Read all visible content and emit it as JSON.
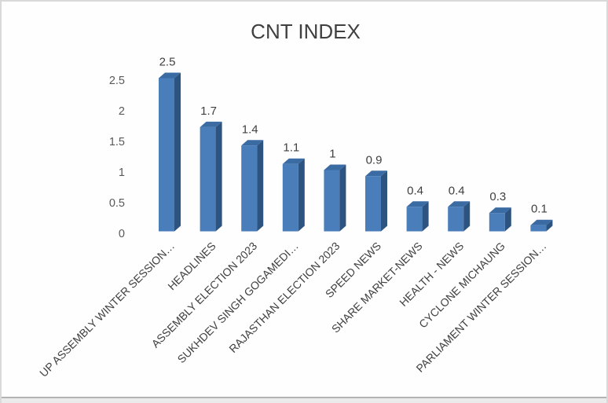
{
  "window": {
    "background": "#fefefe",
    "border_color": "#d9d9d9",
    "bottom_edge_color": "#b3b3b3",
    "bottom_strip_color": "#ebebeb"
  },
  "chart_data": {
    "type": "bar",
    "style": "3d-box",
    "title": "CNT INDEX",
    "categories": [
      "UP ASSEMBLY WINTER SESSION…",
      "HEADLINES",
      "ASSEMBLY ELECTION 2023",
      "SUKHDEV SINGH GOGAMEDI…",
      "RAJASTHAN ELECTION 2023",
      "SPEED NEWS",
      "SHARE MARKET-NEWS",
      "HEALTH - NEWS",
      "CYCLONE MICHAUNG",
      "PARLIAMENT WINTER SESSION…"
    ],
    "values": [
      2.5,
      1.7,
      1.4,
      1.1,
      1,
      0.9,
      0.4,
      0.4,
      0.3,
      0.1
    ],
    "value_labels": [
      "2.5",
      "1.7",
      "1.4",
      "1.1",
      "1",
      "0.9",
      "0.4",
      "0.4",
      "0.3",
      "0.1"
    ],
    "xlabel": "",
    "ylabel": "",
    "ylim": [
      0,
      2.5
    ],
    "yticks": [
      0,
      0.5,
      1,
      1.5,
      2,
      2.5
    ],
    "ytick_labels": [
      "0",
      "0.5",
      "1",
      "1.5",
      "2",
      "2.5"
    ],
    "gridlines": false,
    "legend": "none",
    "category_label_rotation_deg": -45,
    "colors": {
      "bar_front": "#4a7ebb",
      "bar_side": "#2d5380",
      "bar_top": "#3b6ba3",
      "title_text": "#404040",
      "axis_text": "#595959",
      "data_label_text": "#404040",
      "category_text": "#404040"
    }
  }
}
